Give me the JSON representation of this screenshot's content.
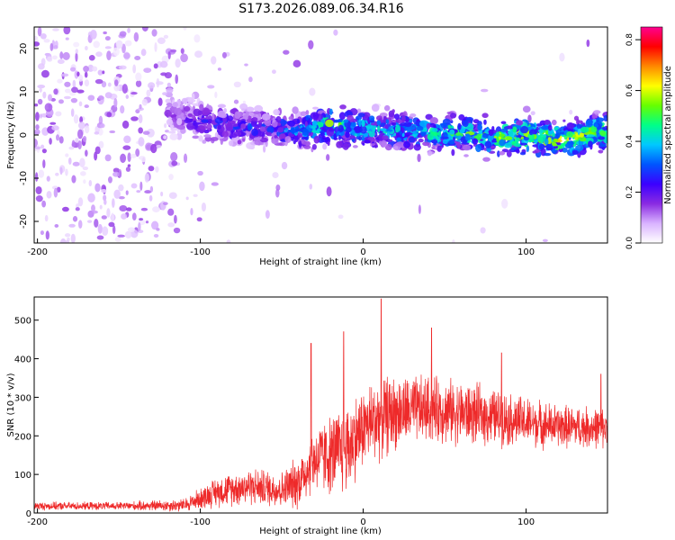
{
  "figure": {
    "title": "S173.2026.089.06.34.R16"
  },
  "colors": {
    "snr_line": "#ee2a2a",
    "axis": "#000000",
    "background": "#ffffff"
  },
  "chart_data": [
    {
      "type": "heatmap",
      "xlabel": "Height of straight line (km)",
      "ylabel": "Frequency (Hz)",
      "xlim": [
        -202,
        150
      ],
      "ylim": [
        -25,
        25
      ],
      "x_ticks": [
        -200,
        -100,
        0,
        100
      ],
      "y_ticks": [
        -20,
        -10,
        0,
        10,
        20
      ],
      "colorbar": {
        "label": "Normalized spectral amplitude",
        "range": [
          0,
          0.85
        ],
        "ticks": [
          0.0,
          0.2,
          0.4,
          0.6,
          0.8
        ],
        "tick_labels": [
          "0.0",
          "0.2",
          "0.4",
          "0.6",
          "0.8"
        ],
        "colormap": [
          "#ffffff",
          "#d9b3ff",
          "#8a2be2",
          "#3b00ff",
          "#0055ff",
          "#00c8ff",
          "#00ff88",
          "#66ff00",
          "#ffff00",
          "#ff8800",
          "#ff0000",
          "#ff0090"
        ]
      },
      "ridge": {
        "description_free": true,
        "x": [
          -120,
          -100,
          -80,
          -60,
          -40,
          -20,
          0,
          20,
          40,
          60,
          80,
          100,
          120,
          150
        ],
        "center_hz": [
          5,
          3,
          2,
          1.5,
          1,
          2.5,
          1.5,
          1,
          0.5,
          0.5,
          -0.5,
          0,
          -1,
          1
        ],
        "peak_amplitude": [
          0.15,
          0.25,
          0.3,
          0.3,
          0.4,
          0.55,
          0.45,
          0.45,
          0.5,
          0.55,
          0.55,
          0.65,
          0.65,
          0.55
        ]
      },
      "grid": false
    },
    {
      "type": "line",
      "xlabel": "Height of straight line (km)",
      "ylabel": "SNR (10 * v/v)",
      "xlim": [
        -202,
        150
      ],
      "ylim": [
        0,
        560
      ],
      "x_ticks": [
        -200,
        -100,
        0,
        100
      ],
      "y_ticks": [
        0,
        100,
        200,
        300,
        400,
        500
      ],
      "series": [
        {
          "envelope_x": [
            -202,
            -150,
            -110,
            -90,
            -70,
            -50,
            -40,
            -30,
            -20,
            -10,
            0,
            10,
            20,
            40,
            60,
            80,
            100,
            120,
            150
          ],
          "mean": [
            18,
            18,
            20,
            55,
            70,
            60,
            80,
            140,
            150,
            170,
            220,
            250,
            260,
            270,
            260,
            250,
            235,
            225,
            220
          ],
          "amplitude": [
            12,
            12,
            20,
            45,
            55,
            55,
            80,
            100,
            120,
            140,
            120,
            130,
            110,
            100,
            95,
            85,
            75,
            65,
            60
          ],
          "peaks": [
            {
              "x": -32,
              "y": 440
            },
            {
              "x": -12,
              "y": 470
            },
            {
              "x": 11,
              "y": 555
            },
            {
              "x": 42,
              "y": 480
            },
            {
              "x": 85,
              "y": 415
            },
            {
              "x": 146,
              "y": 360
            }
          ]
        }
      ],
      "grid": false
    }
  ]
}
